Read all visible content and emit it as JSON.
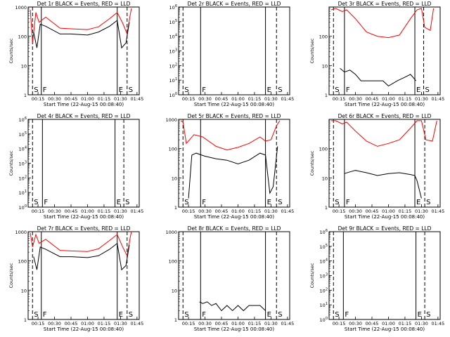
{
  "chart_data": [
    {
      "type": "line",
      "title": "Det 1r BLACK = Events, RED = LLD",
      "xlabel": "Start Time (22-Aug-15 00:08:40)",
      "ylabel": "Counts/sec",
      "scale": "log",
      "ylim": [
        1,
        1000
      ],
      "ytick_labels": [
        "1",
        "10",
        "100",
        "1000"
      ],
      "xticks": [
        "00:15",
        "00:30",
        "00:45",
        "01:00",
        "01:15",
        "01:30",
        "01:45"
      ],
      "markers": [
        {
          "label": "S",
          "x": "00:10"
        },
        {
          "label": "F",
          "x": "00:18"
        },
        {
          "label": "E",
          "x": "01:27"
        },
        {
          "label": "S",
          "x": "01:36"
        }
      ],
      "series": [
        {
          "color": "#ff0000",
          "x": [
            "00:08",
            "00:10",
            "00:13",
            "00:16",
            "00:22",
            "00:35",
            "00:45",
            "01:00",
            "01:10",
            "01:20",
            "01:27",
            "01:32",
            "01:36",
            "01:39",
            "01:40"
          ],
          "values": [
            800,
            60,
            650,
            300,
            450,
            190,
            180,
            170,
            210,
            400,
            650,
            280,
            120,
            600,
            900
          ]
        },
        {
          "color": "#000000",
          "x": [
            "00:11",
            "00:14",
            "00:17",
            "00:22",
            "00:35",
            "00:45",
            "01:00",
            "01:10",
            "01:20",
            "01:27",
            "01:31",
            "01:35",
            "01:38"
          ],
          "values": [
            140,
            40,
            260,
            220,
            120,
            120,
            110,
            140,
            220,
            350,
            40,
            60,
            300
          ]
        }
      ]
    },
    {
      "type": "line",
      "title": "Det 2r BLACK = Events, RED = LLD",
      "xlabel": "Start Time (22-Aug-15 00:08:40)",
      "ylabel": "",
      "scale": "log",
      "ylim": [
        1,
        1000000
      ],
      "ytick_labels": [
        "10^0",
        "10^1",
        "10^2",
        "10^3",
        "10^4",
        "10^5",
        "10^6"
      ],
      "xticks": [
        "00:15",
        "00:30",
        "00:45",
        "01:00",
        "01:15",
        "01:30",
        "01:45"
      ],
      "markers": [
        {
          "label": "S",
          "x": "00:10"
        },
        {
          "label": "F",
          "x": "00:26"
        },
        {
          "label": "E",
          "x": "01:25"
        },
        {
          "label": "S",
          "x": "01:35"
        }
      ],
      "series": []
    },
    {
      "type": "line",
      "title": "Det 3r BLACK = Events, RED = LLD",
      "xlabel": "Start Time (22-Aug-15 00:08:40)",
      "ylabel": "Counts/sec",
      "scale": "log",
      "ylim": [
        1,
        1000
      ],
      "ytick_labels": [
        "1",
        "10",
        "100"
      ],
      "xticks": [
        "00:15",
        "00:30",
        "00:45",
        "01:00",
        "01:15",
        "01:30",
        "01:45"
      ],
      "markers": [
        {
          "label": "S",
          "x": "00:10"
        },
        {
          "label": "F",
          "x": "00:20"
        },
        {
          "label": "E",
          "x": "01:24"
        },
        {
          "label": "S",
          "x": "01:32"
        }
      ],
      "series": [
        {
          "color": "#ff0000",
          "x": [
            "00:08",
            "00:12",
            "00:18",
            "00:22",
            "00:30",
            "00:40",
            "00:50",
            "01:00",
            "01:10",
            "01:20",
            "01:26",
            "01:30",
            "01:33",
            "01:38",
            "01:41"
          ],
          "values": [
            800,
            900,
            700,
            800,
            400,
            140,
            100,
            90,
            110,
            400,
            800,
            900,
            200,
            160,
            900
          ]
        },
        {
          "color": "#000000",
          "x": [
            "00:16",
            "00:20",
            "00:25",
            "00:30",
            "00:35",
            "00:45",
            "00:55",
            "01:00",
            "01:08",
            "01:15",
            "01:20",
            "01:25"
          ],
          "values": [
            8,
            6,
            7,
            5,
            3,
            3,
            3,
            2,
            3,
            4,
            5,
            3
          ]
        }
      ]
    },
    {
      "type": "line",
      "title": "Det 4r BLACK = Events, RED = LLD",
      "xlabel": "Start Time (22-Aug-15 00:08:40)",
      "ylabel": "Counts/sec",
      "scale": "log",
      "ylim": [
        1,
        1000000
      ],
      "ytick_labels": [
        "10^0",
        "10^1",
        "10^2",
        "10^3",
        "10^4",
        "10^5",
        "10^6"
      ],
      "xticks": [
        "00:15",
        "00:30",
        "00:45",
        "01:00",
        "01:15",
        "01:30",
        "01:45"
      ],
      "markers": [
        {
          "label": "S",
          "x": "00:10"
        },
        {
          "label": "F",
          "x": "00:19"
        },
        {
          "label": "E",
          "x": "01:25"
        },
        {
          "label": "S",
          "x": "01:33"
        }
      ],
      "series": []
    },
    {
      "type": "line",
      "title": "Det 5r BLACK = Events, RED = LLD",
      "xlabel": "Start Time (22-Aug-15 00:08:40)",
      "ylabel": "",
      "scale": "log",
      "ylim": [
        1,
        1000
      ],
      "ytick_labels": [
        "1",
        "10",
        "100",
        "1000"
      ],
      "xticks": [
        "00:15",
        "00:30",
        "00:45",
        "01:00",
        "01:15",
        "01:30",
        "01:45"
      ],
      "markers": [
        {
          "label": "S",
          "x": "00:10"
        },
        {
          "label": "F",
          "x": "00:26"
        },
        {
          "label": "E",
          "x": "01:25"
        },
        {
          "label": "S",
          "x": "01:35"
        }
      ],
      "series": [
        {
          "color": "#ff0000",
          "x": [
            "00:08",
            "00:10",
            "00:13",
            "00:16",
            "00:20",
            "00:28",
            "00:40",
            "00:50",
            "01:00",
            "01:10",
            "01:20",
            "01:25",
            "01:30",
            "01:35",
            "01:38"
          ],
          "values": [
            900,
            800,
            150,
            200,
            300,
            250,
            120,
            90,
            110,
            150,
            250,
            180,
            200,
            600,
            900
          ]
        },
        {
          "color": "#000000",
          "x": [
            "00:15",
            "00:18",
            "00:22",
            "00:30",
            "00:40",
            "00:50",
            "01:00",
            "01:10",
            "01:20",
            "01:25",
            "01:29",
            "01:32",
            "01:36"
          ],
          "values": [
            2,
            60,
            70,
            55,
            45,
            40,
            30,
            40,
            70,
            60,
            3,
            5,
            120
          ]
        }
      ]
    },
    {
      "type": "line",
      "title": "Det 6r BLACK = Events, RED = LLD",
      "xlabel": "Start Time (22-Aug-15 00:08:40)",
      "ylabel": "Counts/sec",
      "scale": "log",
      "ylim": [
        1,
        1000
      ],
      "ytick_labels": [
        "1",
        "10",
        "100"
      ],
      "xticks": [
        "00:15",
        "00:30",
        "00:45",
        "01:00",
        "01:15",
        "01:30",
        "01:45"
      ],
      "markers": [
        {
          "label": "S",
          "x": "00:10"
        },
        {
          "label": "F",
          "x": "00:20"
        },
        {
          "label": "E",
          "x": "01:24"
        },
        {
          "label": "S",
          "x": "01:33"
        }
      ],
      "series": [
        {
          "color": "#ff0000",
          "x": [
            "00:08",
            "00:12",
            "00:18",
            "00:22",
            "00:30",
            "00:40",
            "00:50",
            "01:00",
            "01:10",
            "01:20",
            "01:26",
            "01:30",
            "01:34",
            "01:40",
            "01:44"
          ],
          "values": [
            900,
            900,
            700,
            800,
            400,
            180,
            120,
            150,
            200,
            500,
            900,
            900,
            200,
            180,
            900
          ]
        },
        {
          "color": "#000000",
          "x": [
            "00:20",
            "00:25",
            "00:30",
            "00:40",
            "00:50",
            "01:00",
            "01:10",
            "01:20",
            "01:24",
            "01:26",
            "01:30"
          ],
          "values": [
            14,
            16,
            18,
            15,
            12,
            14,
            15,
            13,
            12,
            8,
            2
          ]
        }
      ]
    },
    {
      "type": "line",
      "title": "Det 7r BLACK = Events, RED = LLD",
      "xlabel": "Start Time (22-Aug-15 00:08:40)",
      "ylabel": "Counts/sec",
      "scale": "log",
      "ylim": [
        1,
        1000
      ],
      "ytick_labels": [
        "1",
        "10",
        "100",
        "1000"
      ],
      "xticks": [
        "00:15",
        "00:30",
        "00:45",
        "01:00",
        "01:15",
        "01:30",
        "01:45"
      ],
      "markers": [
        {
          "label": "S",
          "x": "00:10"
        },
        {
          "label": "F",
          "x": "00:18"
        },
        {
          "label": "E",
          "x": "01:27"
        },
        {
          "label": "S",
          "x": "01:36"
        }
      ],
      "series": [
        {
          "color": "#ff0000",
          "x": [
            "00:08",
            "00:10",
            "00:13",
            "00:16",
            "00:22",
            "00:35",
            "00:45",
            "01:00",
            "01:10",
            "01:20",
            "01:27",
            "01:32",
            "01:36",
            "01:39",
            "01:40"
          ],
          "values": [
            900,
            300,
            800,
            400,
            550,
            230,
            220,
            210,
            260,
            500,
            800,
            300,
            150,
            700,
            1000
          ]
        },
        {
          "color": "#000000",
          "x": [
            "00:11",
            "00:14",
            "00:17",
            "00:22",
            "00:35",
            "00:45",
            "01:00",
            "01:10",
            "01:20",
            "01:27",
            "01:31",
            "01:35",
            "01:38"
          ],
          "values": [
            140,
            50,
            300,
            250,
            140,
            140,
            130,
            150,
            250,
            400,
            50,
            70,
            350
          ]
        }
      ]
    },
    {
      "type": "line",
      "title": "Det 8r BLACK = Events, RED = LLD",
      "xlabel": "Start Time (22-Aug-15 00:08:40)",
      "ylabel": "",
      "scale": "log",
      "ylim": [
        1,
        1000
      ],
      "ytick_labels": [
        "1",
        "10",
        "100",
        "1000"
      ],
      "xticks": [
        "00:15",
        "00:30",
        "00:45",
        "01:00",
        "01:15",
        "01:30",
        "01:45"
      ],
      "markers": [
        {
          "label": "S",
          "x": "00:10"
        },
        {
          "label": "F",
          "x": "00:26"
        },
        {
          "label": "E",
          "x": "01:25"
        },
        {
          "label": "S",
          "x": "01:35"
        }
      ],
      "series": [
        {
          "color": "#000000",
          "x": [
            "00:25",
            "00:28",
            "00:32",
            "00:36",
            "00:40",
            "00:45",
            "00:50",
            "00:55",
            "01:00",
            "01:05",
            "01:10",
            "01:20",
            "01:25"
          ],
          "values": [
            4,
            3.5,
            4,
            3,
            3.5,
            2,
            3,
            2,
            3,
            2,
            3,
            3,
            2
          ]
        }
      ]
    },
    {
      "type": "line",
      "title": "Det 9r BLACK = Events, RED = LLD",
      "xlabel": "Start Time (22-Aug-15 00:08:40)",
      "ylabel": "Counts/sec",
      "scale": "log",
      "ylim": [
        1,
        1000000
      ],
      "ytick_labels": [
        "10^0",
        "10^1",
        "10^2",
        "10^3",
        "10^4",
        "10^5",
        "10^6"
      ],
      "xticks": [
        "00:15",
        "00:30",
        "00:45",
        "01:00",
        "01:15",
        "01:30",
        "01:45"
      ],
      "markers": [
        {
          "label": "S",
          "x": "00:10"
        },
        {
          "label": "F",
          "x": "00:19"
        },
        {
          "label": "E",
          "x": "01:25"
        },
        {
          "label": "S",
          "x": "01:33"
        }
      ],
      "series": []
    }
  ]
}
